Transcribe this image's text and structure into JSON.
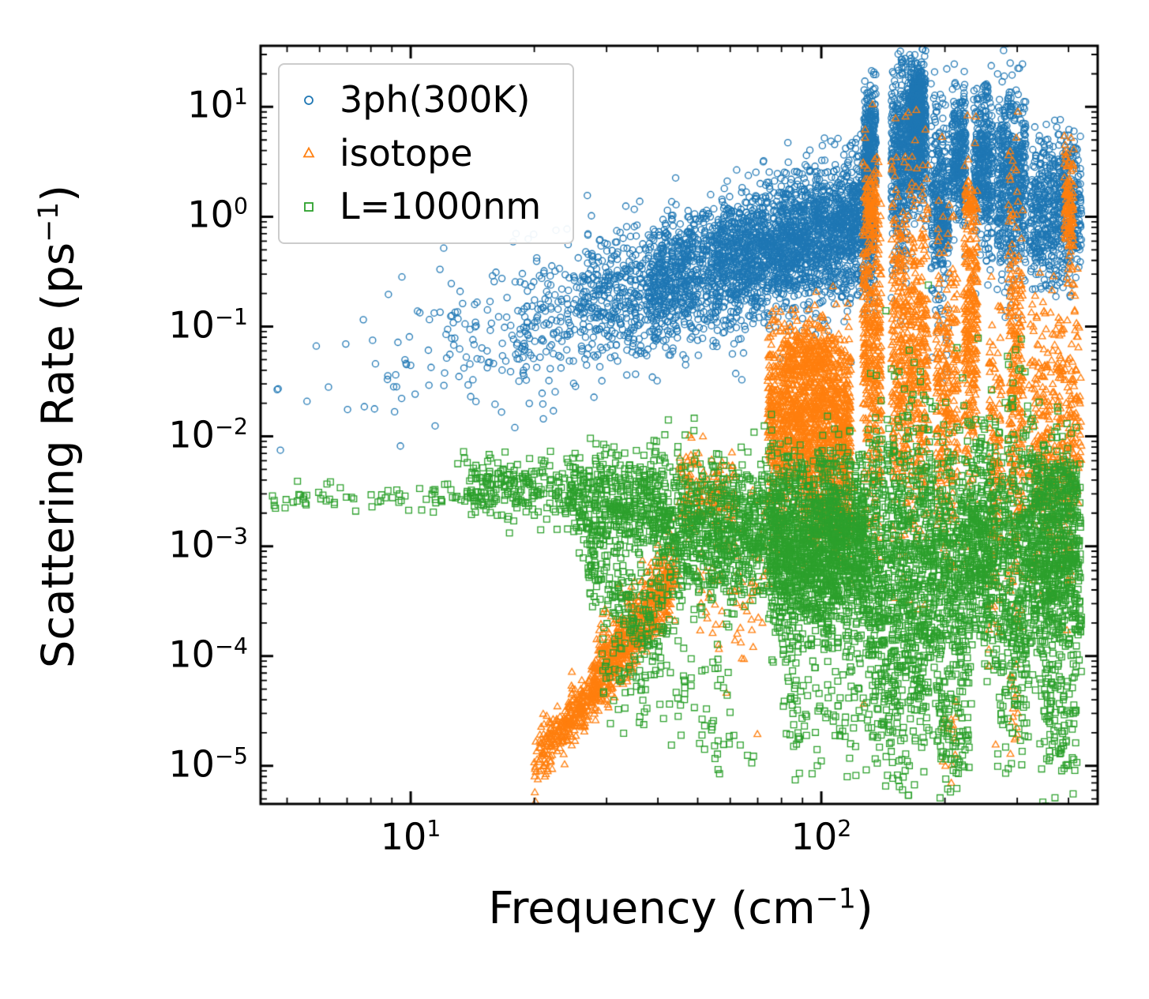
{
  "chart_data": {
    "type": "scatter",
    "title": "",
    "xlabel": {
      "prefix": "Frequency (cm",
      "sup": "−1",
      "suffix": ")"
    },
    "ylabel": {
      "prefix": "Scattering Rate (ps",
      "sup": "−1",
      "suffix": ")"
    },
    "x_scale": "log",
    "y_scale": "log",
    "xlim": [
      4.31,
      471
    ],
    "ylim": [
      4.5e-06,
      36
    ],
    "grid": false,
    "legend_position": "upper left",
    "tick_label_base": "10",
    "x_major_ticks": [
      {
        "value": 10,
        "exponent": "1"
      },
      {
        "value": 100,
        "exponent": "2"
      }
    ],
    "y_major_ticks": [
      {
        "value": 1e-05,
        "exponent": "−5"
      },
      {
        "value": 0.0001,
        "exponent": "−4"
      },
      {
        "value": 0.001,
        "exponent": "−3"
      },
      {
        "value": 0.01,
        "exponent": "−2"
      },
      {
        "value": 0.1,
        "exponent": "−1"
      },
      {
        "value": 1,
        "exponent": "0"
      },
      {
        "value": 10,
        "exponent": "1"
      }
    ],
    "frame_color": "#000000",
    "seed": 20240613,
    "cluster_format": [
      "x_min",
      "x_max",
      "log10y_mean_at_x_min",
      "log10y_mean_at_x_max",
      "log10y_sigma",
      "n_points"
    ],
    "series": [
      {
        "name": "3ph(300K)",
        "marker": "circle",
        "color": "#1f77b4",
        "clusters": [
          [
            4.6,
            8,
            -1.69,
            -1.41,
            0.33,
            10
          ],
          [
            8,
            12,
            -1.41,
            -1.21,
            0.33,
            30
          ],
          [
            12,
            18,
            -1.21,
            -1.01,
            0.33,
            70
          ],
          [
            18,
            26,
            -1.01,
            -0.82,
            0.32,
            160
          ],
          [
            26,
            38,
            -0.82,
            -0.63,
            0.3,
            350
          ],
          [
            38,
            55,
            -0.63,
            -0.45,
            0.3,
            650
          ],
          [
            55,
            80,
            -0.45,
            -0.26,
            0.29,
            900
          ],
          [
            80,
            115,
            -0.26,
            -0.08,
            0.3,
            1000
          ],
          [
            115,
            135,
            -0.08,
            0.0,
            0.32,
            500
          ],
          [
            127,
            136,
            0.65,
            0.65,
            0.25,
            300
          ],
          [
            148,
            162,
            0.5,
            0.5,
            0.45,
            350
          ],
          [
            162,
            180,
            0.75,
            0.75,
            0.35,
            600
          ],
          [
            166,
            176,
            1.1,
            1.1,
            0.1,
            200
          ],
          [
            185,
            205,
            0.1,
            0.1,
            0.45,
            350
          ],
          [
            208,
            225,
            0.55,
            0.55,
            0.3,
            300
          ],
          [
            235,
            262,
            0.45,
            0.45,
            0.4,
            380
          ],
          [
            268,
            292,
            0.3,
            0.3,
            0.45,
            300
          ],
          [
            292,
            315,
            0.35,
            0.35,
            0.4,
            250
          ],
          [
            320,
            430,
            0.0,
            0.0,
            0.3,
            550
          ],
          [
            330,
            420,
            0.55,
            0.55,
            0.15,
            80
          ]
        ]
      },
      {
        "name": "isotope",
        "marker": "triangle",
        "color": "#ff7f0e",
        "clusters": [
          [
            20,
            43,
            -5.0,
            -3.45,
            0.12,
            550
          ],
          [
            24,
            45,
            -4.6,
            -3.2,
            0.15,
            250
          ],
          [
            28,
            44,
            -4.1,
            -3.15,
            0.18,
            200
          ],
          [
            45,
            62,
            -2.52,
            -2.52,
            0.18,
            160
          ],
          [
            50,
            75,
            -3.4,
            -3.4,
            0.4,
            80
          ],
          [
            74,
            118,
            -1.85,
            -1.85,
            0.42,
            1400
          ],
          [
            82,
            105,
            -1.25,
            -1.25,
            0.12,
            150
          ],
          [
            90,
            120,
            -2.6,
            -2.6,
            0.25,
            200
          ],
          [
            126,
            140,
            -1.2,
            -1.2,
            0.9,
            400
          ],
          [
            128,
            136,
            0.1,
            0.1,
            0.15,
            80
          ],
          [
            148,
            182,
            -1.3,
            -1.3,
            0.85,
            600
          ],
          [
            190,
            215,
            -1.7,
            -1.7,
            0.7,
            280
          ],
          [
            222,
            240,
            -1.0,
            -1.0,
            0.7,
            280
          ],
          [
            224,
            236,
            0.1,
            0.1,
            0.1,
            50
          ],
          [
            255,
            275,
            -2.2,
            -2.2,
            0.8,
            150
          ],
          [
            285,
            310,
            -1.5,
            -1.5,
            0.9,
            280
          ],
          [
            320,
            430,
            -1.8,
            -1.8,
            0.6,
            350
          ],
          [
            390,
            412,
            0.1,
            0.1,
            0.25,
            120
          ],
          [
            330,
            420,
            -2.6,
            -2.6,
            0.4,
            100
          ],
          [
            195,
            215,
            -4.8,
            -4.8,
            0.2,
            15
          ],
          [
            288,
            302,
            -4.6,
            -4.6,
            0.3,
            15
          ]
        ]
      },
      {
        "name": "L=1000nm",
        "marker": "square",
        "color": "#2ca02c",
        "clusters": [
          [
            4.6,
            14,
            -2.56,
            -2.56,
            0.06,
            70
          ],
          [
            14,
            24,
            -2.5,
            -2.5,
            0.12,
            180
          ],
          [
            13,
            22,
            -2.27,
            -2.27,
            0.06,
            25
          ],
          [
            24,
            40,
            -2.6,
            -2.6,
            0.25,
            450
          ],
          [
            27,
            42,
            -3.2,
            -3.9,
            0.25,
            180
          ],
          [
            29,
            38,
            -4.2,
            -4.2,
            0.25,
            60
          ],
          [
            40,
            60,
            -4.4,
            -4.4,
            0.3,
            50
          ],
          [
            40,
            75,
            -2.85,
            -2.85,
            0.35,
            800
          ],
          [
            75,
            130,
            -3.0,
            -3.0,
            0.4,
            1600
          ],
          [
            80,
            130,
            -4.4,
            -4.4,
            0.35,
            120
          ],
          [
            55,
            70,
            -4.9,
            -4.9,
            0.1,
            10
          ],
          [
            130,
            185,
            -3.4,
            -3.4,
            0.85,
            900
          ],
          [
            185,
            230,
            -3.2,
            -3.2,
            0.6,
            450
          ],
          [
            190,
            230,
            -4.7,
            -4.7,
            0.25,
            80
          ],
          [
            230,
            265,
            -3.0,
            -3.0,
            0.5,
            350
          ],
          [
            265,
            320,
            -3.3,
            -3.3,
            0.8,
            400
          ],
          [
            320,
            430,
            -3.1,
            -3.1,
            0.5,
            700
          ],
          [
            330,
            420,
            -2.45,
            -2.45,
            0.12,
            100
          ],
          [
            340,
            420,
            -4.5,
            -4.5,
            0.4,
            120
          ]
        ]
      }
    ]
  }
}
